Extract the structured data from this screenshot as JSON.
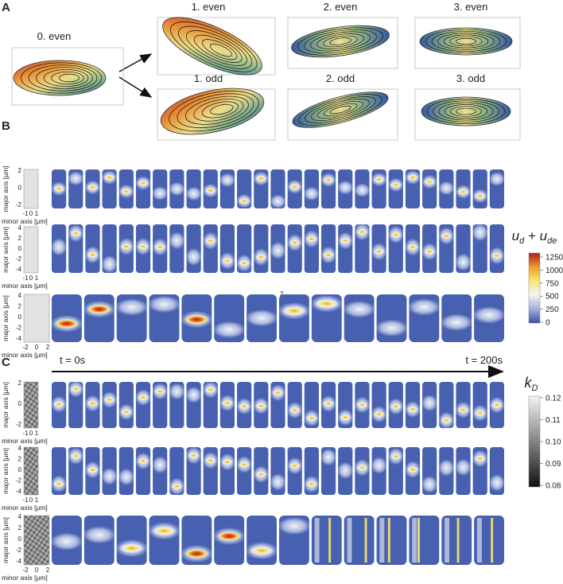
{
  "panel_labels": [
    "A",
    "B",
    "C"
  ],
  "modes": {
    "top": [
      "0. even",
      "1. even",
      "2. even",
      "3. even"
    ],
    "bottom": [
      "1. odd",
      "2. odd",
      "3. odd"
    ]
  },
  "axis_labels": {
    "major": "major axis [μm]",
    "minor": "minor axis [μm]"
  },
  "panel_b": {
    "rows": [
      {
        "yticks": [
          "2",
          "0",
          "-2"
        ],
        "xticks": [
          "-1",
          "0",
          "1"
        ]
      },
      {
        "yticks": [
          "4",
          "2",
          "0",
          "-2",
          "-4"
        ],
        "xticks": [
          "-1",
          "0",
          "1"
        ]
      },
      {
        "yticks": [
          "4",
          "2",
          "0",
          "-2",
          "-4"
        ],
        "xticks": [
          "-2",
          "0",
          "2"
        ]
      }
    ],
    "annotation": "2",
    "colorbar": {
      "label": [
        "u",
        "d",
        " + ",
        "u",
        "de"
      ],
      "ticks": [
        "1250",
        "1000",
        "750",
        "500",
        "250",
        "0"
      ]
    }
  },
  "panel_c": {
    "time_start": "t = 0s",
    "time_end": "t = 200s",
    "rows": [
      {
        "yticks": [
          "2",
          "0",
          "-2"
        ],
        "xticks": [
          "-1",
          "0",
          "1"
        ]
      },
      {
        "yticks": [
          "4",
          "2",
          "0",
          "-2",
          "-4"
        ],
        "xticks": [
          "-1",
          "0",
          "1"
        ]
      },
      {
        "yticks": [
          "4",
          "2",
          "0",
          "-2",
          "-4"
        ],
        "xticks": [
          "-2",
          "0",
          "2"
        ]
      }
    ],
    "colorbar": {
      "label": [
        "k",
        "D"
      ],
      "ticks": [
        "0.12",
        "0.11",
        "0.10",
        "0.09",
        "0.08"
      ]
    }
  }
}
